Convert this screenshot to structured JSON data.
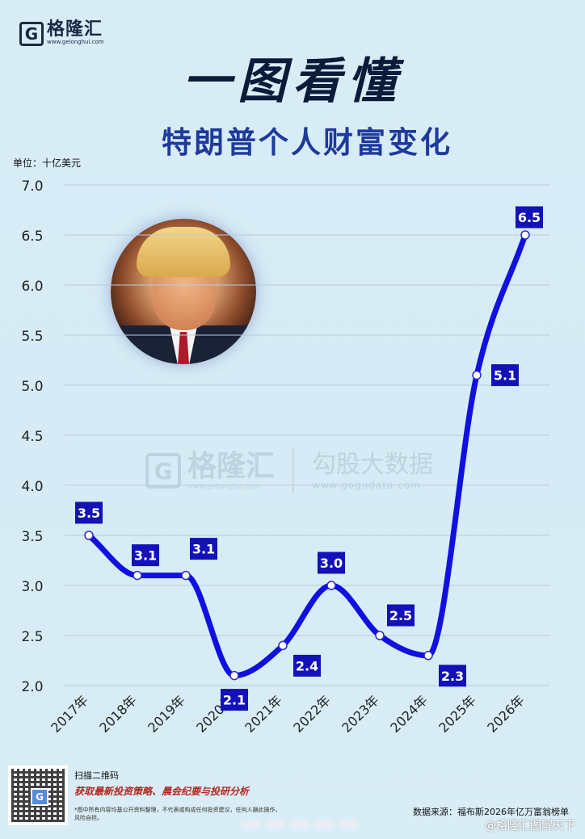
{
  "brand": {
    "logo_mark": "G",
    "name": "格隆汇",
    "url": "www.gelonghui.com"
  },
  "headline": "一图看懂",
  "subtitle": "特朗普个人财富变化",
  "unit_label": "单位：十亿美元",
  "watermark": {
    "mark": "G",
    "name": "格隆汇",
    "url1": "www.gelonghui.com",
    "name2": "勾股大数据",
    "url2": "www.gogudata.com"
  },
  "chart_data": {
    "type": "line",
    "categories": [
      "2017年",
      "2018年",
      "2019年",
      "2020年",
      "2021年",
      "2022年",
      "2023年",
      "2024年",
      "2025年",
      "2026年"
    ],
    "series": [
      {
        "values": [
          3.5,
          3.1,
          3.1,
          2.1,
          2.4,
          3.0,
          2.5,
          2.3,
          5.1,
          6.5
        ]
      }
    ],
    "data_labels": [
      "3.5",
      "3.1",
      "3.1",
      "2.1",
      "2.4",
      "3.0",
      "2.5",
      "2.3",
      "5.1",
      "6.5"
    ],
    "y_ticks": [
      "2.0",
      "2.5",
      "3.0",
      "3.5",
      "4.0",
      "4.5",
      "5.0",
      "5.5",
      "6.0",
      "6.5",
      "7.0"
    ],
    "ylim": [
      2.0,
      7.0
    ],
    "grid": true,
    "line_color": "#1010e0",
    "label_bg": "#1212b8"
  },
  "footer": {
    "qr_center": "G",
    "qr_line1": "扫描二维码",
    "qr_line2": "获取最新投资策略、晨会纪要与投研分析",
    "disclaimer": "*图中所有内容均基公开资料整理，不代表或构成任何投资建议，任何人据此操作，风险自担。",
    "source": "数据来源：福布斯2026年亿万富翁榜单",
    "weibo": "@格隆汇图解天下"
  }
}
